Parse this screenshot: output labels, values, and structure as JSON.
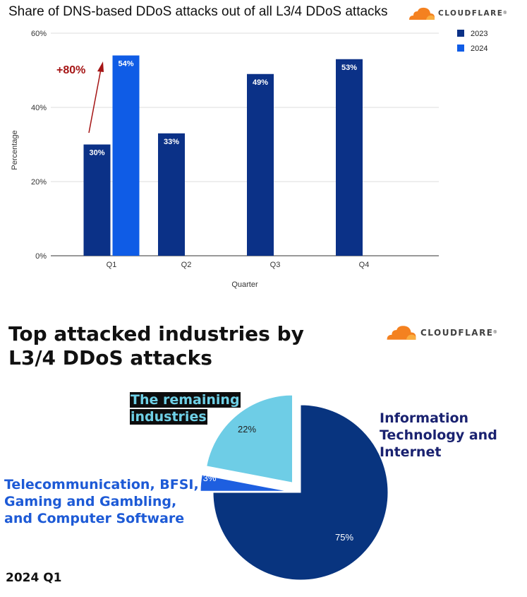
{
  "bar_chart": {
    "logo_text": "CLOUDFLARE"
  },
  "pie_chart": {
    "logo_text": "CLOUDFLARE",
    "footer": "2024 Q1"
  },
  "colors": {
    "series_2023": "#0b3187",
    "series_2024": "#0f5ce6",
    "pie_it": "#08347f",
    "pie_tel": "#1e5fe0",
    "pie_rem": "#6ecde6",
    "annotation": "#a51515"
  },
  "chart_data": [
    {
      "type": "bar",
      "title": "Share of DNS-based DDoS attacks out of all L3/4 DDoS attacks",
      "xlabel": "Quarter",
      "ylabel": "Percentage",
      "ylim": [
        0,
        60
      ],
      "yticks": [
        "0%",
        "20%",
        "40%",
        "60%"
      ],
      "ytick_values": [
        0,
        20,
        40,
        60
      ],
      "grid": true,
      "legend_placement": "top-right",
      "categories": [
        "Q1",
        "Q2",
        "Q3",
        "Q4"
      ],
      "series": [
        {
          "name": "2023",
          "values": [
            30,
            33,
            49,
            53
          ],
          "labels": [
            "30%",
            "33%",
            "49%",
            "53%"
          ]
        },
        {
          "name": "2024",
          "values": [
            54,
            null,
            null,
            null
          ],
          "labels": [
            "54%",
            "",
            "",
            ""
          ]
        }
      ],
      "annotations": [
        {
          "text": "+80%"
        }
      ]
    },
    {
      "type": "pie",
      "title": "Top attacked industries by L3/4 DDoS attacks",
      "slices": [
        {
          "label": "Information Technology and Internet",
          "value": 75,
          "display": "75%"
        },
        {
          "label": "Telecommunication, BFSI, Gaming and Gambling, and Computer Software",
          "value": 3,
          "display": "3%"
        },
        {
          "label": "The remaining industries",
          "value": 22,
          "display": "22%"
        }
      ]
    }
  ]
}
